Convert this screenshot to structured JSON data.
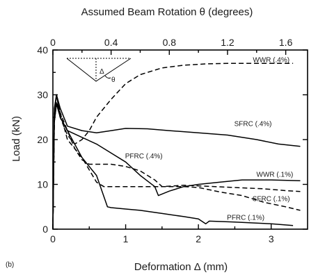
{
  "chart_data": {
    "type": "line",
    "panel_label": "(b)",
    "title": "",
    "xlabel": "Deformation Δ  (mm)",
    "ylabel": "Load (kN)",
    "x2label": "Assumed Beam Rotation θ  (degrees)",
    "xlim": [
      0,
      3.5
    ],
    "ylim": [
      0,
      40
    ],
    "x2lim": [
      0,
      1.75
    ],
    "xticks": [
      0,
      1,
      2,
      3
    ],
    "yticks": [
      0,
      10,
      20,
      30,
      40
    ],
    "x2ticks": [
      "0",
      "0.4",
      "0.8",
      "1.2",
      "1.6"
    ],
    "x2tick_values": [
      0,
      0.4,
      0.8,
      1.2,
      1.6
    ],
    "inset_label": "θ",
    "inset_label_delta": "Δ",
    "series": [
      {
        "name": "WWR (.4%)",
        "style": "dashed",
        "label_at": [
          3.0,
          37.3
        ],
        "x": [
          0,
          0.02,
          0.05,
          0.1,
          0.2,
          0.3,
          0.4,
          0.5,
          0.6,
          0.8,
          1.0,
          1.2,
          1.5,
          1.8,
          2.1,
          2.4,
          2.8,
          3.1,
          3.3
        ],
        "y": [
          0,
          24,
          28,
          25,
          21,
          19,
          20,
          22,
          25,
          29,
          32.5,
          34.5,
          36,
          36.6,
          36.9,
          37,
          37,
          37,
          37
        ]
      },
      {
        "name": "SFRC (.4%)",
        "style": "solid",
        "label_at": [
          2.75,
          23.0
        ],
        "x": [
          0,
          0.02,
          0.05,
          0.1,
          0.2,
          0.4,
          0.6,
          0.8,
          1.0,
          1.3,
          1.6,
          2.0,
          2.4,
          2.8,
          3.1,
          3.4
        ],
        "y": [
          0,
          26,
          30,
          27,
          23,
          22,
          21.5,
          22,
          22.5,
          22.4,
          22,
          21.5,
          21,
          20,
          19,
          18.5
        ]
      },
      {
        "name": "PFRC (.4%)",
        "style": "dashed",
        "label_at": [
          1.25,
          15.8
        ],
        "x": [
          0,
          0.02,
          0.05,
          0.1,
          0.2,
          0.3,
          0.4,
          0.5,
          0.6,
          0.8,
          1.0,
          1.2,
          1.4,
          1.5,
          1.8,
          2.1,
          2.5,
          2.9,
          3.2,
          3.4
        ],
        "y": [
          0,
          25,
          28.5,
          26,
          22,
          18,
          15.5,
          14.5,
          14.5,
          14.5,
          14,
          13,
          11,
          9.5,
          9.8,
          9.6,
          9.3,
          9,
          8.6,
          8.4
        ]
      },
      {
        "name": "WWR (.1%)",
        "style": "solid",
        "label_at": [
          3.05,
          11.7
        ],
        "x": [
          0,
          0.02,
          0.05,
          0.1,
          0.2,
          0.4,
          0.6,
          0.8,
          1.0,
          1.2,
          1.4,
          1.45,
          1.6,
          1.8,
          2.0,
          2.3,
          2.6,
          3.0,
          3.4
        ],
        "y": [
          0,
          24,
          28,
          25,
          22,
          20.5,
          19,
          17,
          15,
          12,
          9.5,
          7.5,
          8.5,
          9.5,
          10,
          10.5,
          11,
          11,
          10.8
        ]
      },
      {
        "name": "SFRC (.1%)",
        "style": "dashed",
        "label_at": [
          3.0,
          6.3
        ],
        "x": [
          0,
          0.02,
          0.05,
          0.1,
          0.2,
          0.4,
          0.6,
          0.7,
          0.8,
          1.0,
          1.2,
          1.5,
          1.8,
          2.0,
          2.3,
          2.6,
          2.9,
          3.2,
          3.4
        ],
        "y": [
          0,
          26,
          30,
          26,
          20,
          16,
          10.5,
          9.5,
          9.5,
          9.5,
          9.5,
          9.5,
          9.5,
          9.3,
          8.3,
          7.5,
          6,
          5,
          4.2
        ]
      },
      {
        "name": "PFRC (.1%)",
        "style": "solid",
        "label_at": [
          2.65,
          2.1
        ],
        "x": [
          0,
          0.02,
          0.05,
          0.1,
          0.2,
          0.4,
          0.6,
          0.75,
          0.8,
          1.0,
          1.2,
          1.5,
          1.8,
          2.0,
          2.1,
          2.15,
          2.5,
          3.0,
          3.3
        ],
        "y": [
          0,
          27,
          30,
          25,
          22,
          16,
          12,
          5,
          4.8,
          4.5,
          4.2,
          3.5,
          2.8,
          2.3,
          1.2,
          1.8,
          1.6,
          1.2,
          0.8
        ]
      }
    ]
  }
}
